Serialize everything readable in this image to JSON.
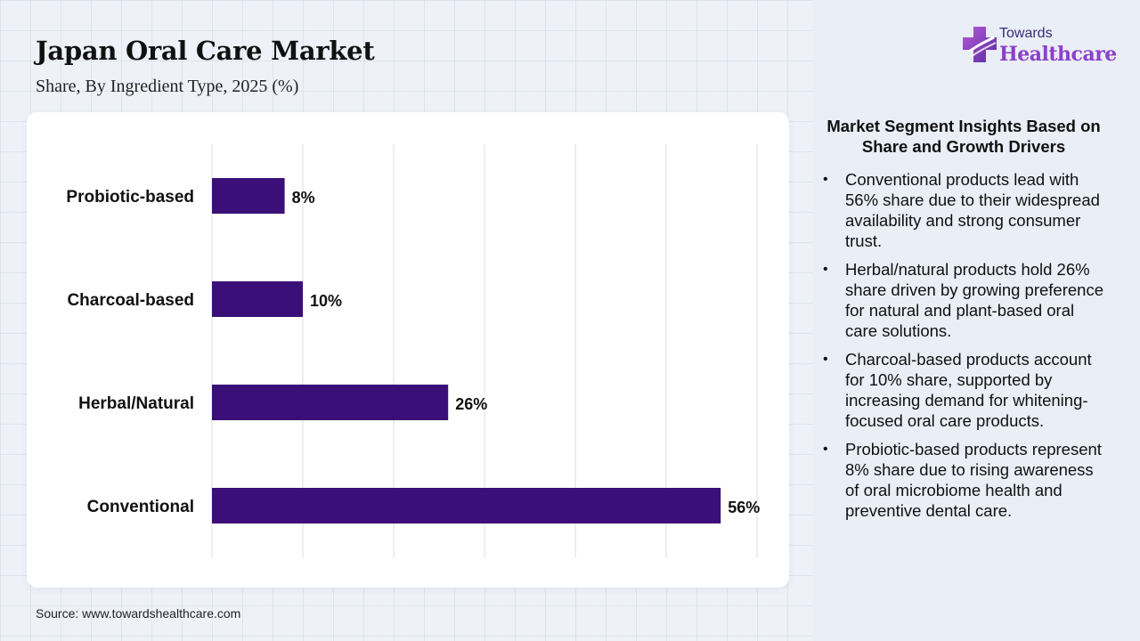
{
  "header": {
    "title": "Japan Oral Care Market",
    "subtitle": "Share, By Ingredient Type, 2025 (%)"
  },
  "brand": {
    "name_top": "Towards",
    "name_bottom": "Healthcare",
    "logo_icon": "medical-cross-icon"
  },
  "colors": {
    "bar": "#3a0f78",
    "brand_purple": "#8d3fc9",
    "brand_dark": "#3b2a7a",
    "background": "#eef2f8",
    "panel": "#e9eef7"
  },
  "chart_data": {
    "type": "bar",
    "orientation": "horizontal",
    "categories": [
      "Probiotic-based",
      "Charcoal-based",
      "Herbal/Natural",
      "Conventional"
    ],
    "values": [
      8,
      10,
      26,
      56
    ],
    "value_labels": [
      "8%",
      "10%",
      "26%",
      "56%"
    ],
    "xlim": [
      0,
      60
    ],
    "grid": true,
    "legend": "none"
  },
  "insights": {
    "title": "Market Segment Insights Based on Share and Growth Drivers",
    "items": [
      "Conventional products lead with 56% share due to their widespread availability and strong consumer trust.",
      "Herbal/natural products hold 26% share driven by growing preference for natural and plant-based oral care solutions.",
      "Charcoal-based products account for 10% share, supported by increasing demand for whitening-focused oral care products.",
      "Probiotic-based products represent 8% share due to rising awareness of oral microbiome health and preventive dental care."
    ]
  },
  "footer": {
    "source": "Source: www.towardshealthcare.com"
  }
}
